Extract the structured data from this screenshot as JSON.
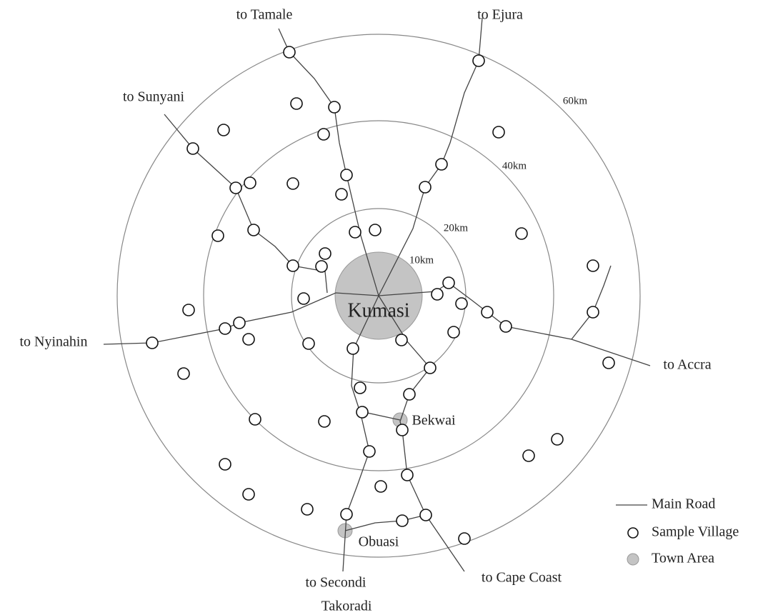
{
  "rings": [
    "10km",
    "20km",
    "40km",
    "60km"
  ],
  "roads": [
    "to Tamale",
    "to Ejura",
    "to Sunyani",
    "to Nyinahin",
    "to Accra",
    "to Secondi",
    "Takoradi",
    "to Cape Coast"
  ],
  "towns": [
    "Kumasi",
    "Bekwai",
    "Obuasi"
  ],
  "legend": [
    "Main Road",
    "Sample Village",
    "Town Area"
  ]
}
